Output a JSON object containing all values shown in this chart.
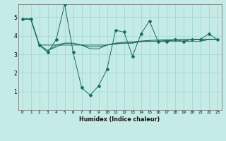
{
  "title": "",
  "xlabel": "Humidex (Indice chaleur)",
  "ylabel": "",
  "bg_color": "#c5ebe6",
  "grid_color": "#9dd4ce",
  "line_color": "#1a6b60",
  "xlim": [
    -0.5,
    23.5
  ],
  "ylim": [
    0.0,
    5.7
  ],
  "yticks": [
    1,
    2,
    3,
    4,
    5
  ],
  "xticks": [
    0,
    1,
    2,
    3,
    4,
    5,
    6,
    7,
    8,
    9,
    10,
    11,
    12,
    13,
    14,
    15,
    16,
    17,
    18,
    19,
    20,
    21,
    22,
    23
  ],
  "series1": [
    4.9,
    4.9,
    3.5,
    3.1,
    3.8,
    5.7,
    3.1,
    1.2,
    0.8,
    1.3,
    2.2,
    4.3,
    4.2,
    2.9,
    4.1,
    4.8,
    3.7,
    3.7,
    3.8,
    3.7,
    3.8,
    3.8,
    4.1,
    3.8
  ],
  "series2": [
    4.9,
    4.9,
    3.5,
    3.5,
    3.5,
    3.5,
    3.5,
    3.5,
    3.5,
    3.5,
    3.5,
    3.6,
    3.6,
    3.6,
    3.7,
    3.7,
    3.7,
    3.7,
    3.7,
    3.7,
    3.7,
    3.7,
    3.8,
    3.8
  ],
  "series3": [
    4.9,
    4.9,
    3.5,
    3.2,
    3.4,
    3.6,
    3.6,
    3.5,
    3.4,
    3.4,
    3.5,
    3.55,
    3.6,
    3.62,
    3.68,
    3.7,
    3.72,
    3.74,
    3.76,
    3.77,
    3.78,
    3.79,
    3.8,
    3.81
  ],
  "series4": [
    4.9,
    4.9,
    3.5,
    3.2,
    3.5,
    3.6,
    3.6,
    3.5,
    3.3,
    3.3,
    3.5,
    3.6,
    3.65,
    3.68,
    3.72,
    3.75,
    3.77,
    3.78,
    3.79,
    3.8,
    3.8,
    3.81,
    3.81,
    3.82
  ]
}
